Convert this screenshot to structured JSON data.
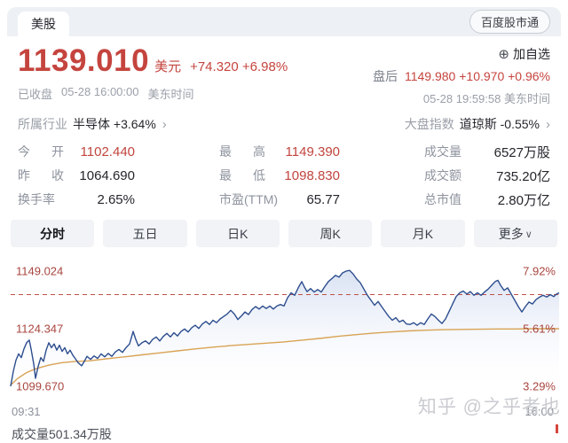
{
  "topbar": {
    "market_tab": "美股",
    "app_badge": "百度股市通"
  },
  "quote": {
    "price": "1139.010",
    "currency": "美元",
    "change": "+74.320 +6.98%",
    "status": "已收盘",
    "status_time": "05-28 16:00:00",
    "status_tz": "美东时间",
    "add_watchlist": "加自选",
    "plus_icon": "⊕",
    "after_hours_label": "盘后",
    "after_hours_values": "1149.980 +10.970 +0.96%",
    "after_hours_time": "05-28 19:59:58",
    "after_hours_tz": "美东时间"
  },
  "sector_row": {
    "industry_label": "所属行业",
    "industry_value": "半导体 +3.64%",
    "index_label": "大盘指数",
    "index_value": "道琼斯 -0.55%",
    "chevron": "›"
  },
  "stats": {
    "columns": [
      {
        "items": [
          {
            "label": "今开",
            "spread": true,
            "value": "1102.440",
            "color": "red"
          },
          {
            "label": "昨收",
            "spread": true,
            "value": "1064.690",
            "color": "dark"
          },
          {
            "label": "换手率",
            "spread": false,
            "value": "2.65%",
            "color": "dark"
          }
        ]
      },
      {
        "items": [
          {
            "label": "最高",
            "spread": true,
            "value": "1149.390",
            "color": "red"
          },
          {
            "label": "最低",
            "spread": true,
            "value": "1098.830",
            "color": "red"
          },
          {
            "label": "市盈(TTM)",
            "spread": false,
            "value": "65.77",
            "color": "dark"
          }
        ]
      },
      {
        "items": [
          {
            "label": "成交量",
            "spread": false,
            "value": "6527万股",
            "color": "dark"
          },
          {
            "label": "成交额",
            "spread": false,
            "value": "735.20亿",
            "color": "dark"
          },
          {
            "label": "总市值",
            "spread": false,
            "value": "2.80万亿",
            "color": "dark"
          }
        ]
      }
    ]
  },
  "tabs": [
    {
      "label": "分时",
      "active": true,
      "chevron": false
    },
    {
      "label": "五日",
      "active": false,
      "chevron": false
    },
    {
      "label": "日K",
      "active": false,
      "chevron": false
    },
    {
      "label": "周K",
      "active": false,
      "chevron": false
    },
    {
      "label": "月K",
      "active": false,
      "chevron": false
    },
    {
      "label": "更多",
      "active": false,
      "chevron": true
    }
  ],
  "chart_data": {
    "type": "line",
    "title": "分时 (intraday minute chart)",
    "prev_close": 1064.69,
    "close": 1139.01,
    "current_pct": 6.98,
    "high": 1149.39,
    "low": 1098.83,
    "x_range": [
      "09:31",
      "16:00"
    ],
    "y_labels_left": [
      {
        "text": "1149.024",
        "pct": 7.92
      },
      {
        "text": "1124.347",
        "pct": 5.61
      },
      {
        "text": "1099.670",
        "pct": 3.29
      }
    ],
    "y_labels_right": [
      {
        "text": "7.92%",
        "pct": 7.92
      },
      {
        "text": "5.61%",
        "pct": 5.61
      },
      {
        "text": "3.29%",
        "pct": 3.29
      }
    ],
    "calibration": [
      [
        7.92,
        21
      ],
      [
        5.61,
        86
      ]
    ],
    "colors": {
      "price_line": "#2c4d8e",
      "avg_line": "#d9a355",
      "dashed": "#c0504a",
      "fill_top": "#b9c9e8",
      "label": "#a8463f"
    },
    "price_line": [
      [
        12,
        3.3
      ],
      [
        15,
        3.9
      ],
      [
        18,
        4.35
      ],
      [
        21,
        4.6
      ],
      [
        24,
        4.45
      ],
      [
        27,
        4.8
      ],
      [
        30,
        5.05
      ],
      [
        33,
        5.15
      ],
      [
        35,
        4.8
      ],
      [
        38,
        4.2
      ],
      [
        40,
        3.62
      ],
      [
        43,
        4.1
      ],
      [
        46,
        4.45
      ],
      [
        49,
        4.3
      ],
      [
        52,
        4.75
      ],
      [
        55,
        5.05
      ],
      [
        58,
        4.85
      ],
      [
        61,
        5.0
      ],
      [
        64,
        4.75
      ],
      [
        67,
        4.95
      ],
      [
        70,
        4.7
      ],
      [
        73,
        4.85
      ],
      [
        76,
        4.6
      ],
      [
        79,
        4.75
      ],
      [
        82,
        4.55
      ],
      [
        85,
        4.4
      ],
      [
        88,
        4.25
      ],
      [
        92,
        4.12
      ],
      [
        95,
        4.3
      ],
      [
        98,
        4.5
      ],
      [
        102,
        4.38
      ],
      [
        106,
        4.52
      ],
      [
        110,
        4.42
      ],
      [
        114,
        4.6
      ],
      [
        118,
        4.48
      ],
      [
        122,
        4.62
      ],
      [
        126,
        4.5
      ],
      [
        130,
        4.68
      ],
      [
        134,
        4.78
      ],
      [
        138,
        4.66
      ],
      [
        142,
        4.85
      ],
      [
        146,
        5.0
      ],
      [
        150,
        5.5
      ],
      [
        153,
        5.18
      ],
      [
        156,
        4.92
      ],
      [
        160,
        5.05
      ],
      [
        164,
        5.12
      ],
      [
        168,
        5.0
      ],
      [
        172,
        5.18
      ],
      [
        176,
        5.28
      ],
      [
        180,
        5.12
      ],
      [
        184,
        5.3
      ],
      [
        188,
        5.42
      ],
      [
        192,
        5.28
      ],
      [
        196,
        5.45
      ],
      [
        200,
        5.32
      ],
      [
        204,
        5.5
      ],
      [
        208,
        5.6
      ],
      [
        212,
        5.48
      ],
      [
        216,
        5.65
      ],
      [
        220,
        5.75
      ],
      [
        224,
        5.62
      ],
      [
        228,
        5.8
      ],
      [
        232,
        5.9
      ],
      [
        236,
        5.78
      ],
      [
        240,
        5.95
      ],
      [
        244,
        5.85
      ],
      [
        248,
        6.0
      ],
      [
        252,
        6.1
      ],
      [
        256,
        6.2
      ],
      [
        260,
        6.35
      ],
      [
        264,
        6.2
      ],
      [
        268,
        5.98
      ],
      [
        272,
        6.12
      ],
      [
        276,
        6.28
      ],
      [
        280,
        6.18
      ],
      [
        284,
        6.38
      ],
      [
        288,
        6.5
      ],
      [
        292,
        6.4
      ],
      [
        296,
        6.52
      ],
      [
        300,
        6.42
      ],
      [
        304,
        6.52
      ],
      [
        308,
        6.4
      ],
      [
        312,
        6.52
      ],
      [
        316,
        6.58
      ],
      [
        320,
        6.52
      ],
      [
        324,
        6.85
      ],
      [
        328,
        7.05
      ],
      [
        332,
        6.95
      ],
      [
        336,
        7.25
      ],
      [
        340,
        7.5
      ],
      [
        343,
        7.28
      ],
      [
        346,
        7.1
      ],
      [
        350,
        7.22
      ],
      [
        354,
        7.08
      ],
      [
        358,
        7.18
      ],
      [
        362,
        7.08
      ],
      [
        366,
        7.3
      ],
      [
        370,
        7.5
      ],
      [
        374,
        7.62
      ],
      [
        378,
        7.75
      ],
      [
        382,
        7.68
      ],
      [
        386,
        7.85
      ],
      [
        390,
        7.92
      ],
      [
        394,
        7.95
      ],
      [
        398,
        7.8
      ],
      [
        402,
        7.6
      ],
      [
        406,
        7.45
      ],
      [
        410,
        7.2
      ],
      [
        414,
        6.95
      ],
      [
        418,
        6.75
      ],
      [
        422,
        6.55
      ],
      [
        426,
        6.7
      ],
      [
        430,
        6.5
      ],
      [
        434,
        6.3
      ],
      [
        438,
        6.1
      ],
      [
        442,
        5.95
      ],
      [
        446,
        6.05
      ],
      [
        450,
        5.88
      ],
      [
        454,
        5.95
      ],
      [
        458,
        5.8
      ],
      [
        462,
        5.78
      ],
      [
        466,
        5.85
      ],
      [
        470,
        5.75
      ],
      [
        474,
        5.85
      ],
      [
        478,
        5.78
      ],
      [
        482,
        6.0
      ],
      [
        486,
        6.2
      ],
      [
        490,
        6.1
      ],
      [
        494,
        5.95
      ],
      [
        498,
        5.82
      ],
      [
        502,
        6.0
      ],
      [
        506,
        6.3
      ],
      [
        510,
        6.6
      ],
      [
        514,
        6.9
      ],
      [
        518,
        7.05
      ],
      [
        522,
        7.12
      ],
      [
        526,
        7.0
      ],
      [
        530,
        7.1
      ],
      [
        534,
        6.95
      ],
      [
        538,
        7.05
      ],
      [
        542,
        6.95
      ],
      [
        546,
        7.08
      ],
      [
        550,
        7.2
      ],
      [
        554,
        7.35
      ],
      [
        558,
        7.5
      ],
      [
        561,
        7.55
      ],
      [
        564,
        7.35
      ],
      [
        568,
        7.15
      ],
      [
        572,
        7.25
      ],
      [
        576,
        7.0
      ],
      [
        580,
        6.75
      ],
      [
        584,
        6.5
      ],
      [
        588,
        6.28
      ],
      [
        592,
        6.5
      ],
      [
        596,
        6.68
      ],
      [
        600,
        6.6
      ],
      [
        604,
        6.78
      ],
      [
        608,
        6.88
      ],
      [
        612,
        6.95
      ],
      [
        616,
        6.88
      ],
      [
        620,
        6.98
      ],
      [
        624,
        6.9
      ],
      [
        627,
        7.0
      ],
      [
        630,
        7.05
      ]
    ],
    "avg_line": [
      [
        12,
        3.35
      ],
      [
        20,
        3.62
      ],
      [
        30,
        3.85
      ],
      [
        40,
        4.0
      ],
      [
        55,
        4.15
      ],
      [
        70,
        4.25
      ],
      [
        85,
        4.3
      ],
      [
        100,
        4.32
      ],
      [
        120,
        4.4
      ],
      [
        140,
        4.48
      ],
      [
        160,
        4.56
      ],
      [
        180,
        4.64
      ],
      [
        200,
        4.72
      ],
      [
        220,
        4.8
      ],
      [
        240,
        4.87
      ],
      [
        260,
        4.93
      ],
      [
        280,
        4.98
      ],
      [
        300,
        5.03
      ],
      [
        320,
        5.08
      ],
      [
        340,
        5.15
      ],
      [
        360,
        5.22
      ],
      [
        380,
        5.3
      ],
      [
        400,
        5.37
      ],
      [
        420,
        5.43
      ],
      [
        440,
        5.48
      ],
      [
        460,
        5.52
      ],
      [
        480,
        5.55
      ],
      [
        500,
        5.57
      ],
      [
        520,
        5.58
      ],
      [
        540,
        5.59
      ],
      [
        560,
        5.6
      ],
      [
        580,
        5.6
      ],
      [
        600,
        5.61
      ],
      [
        615,
        5.61
      ],
      [
        630,
        5.61
      ]
    ]
  },
  "footer": {
    "time_start": "09:31",
    "time_end": "16:00",
    "volume_text": "成交量501.34万股"
  },
  "watermark": "知乎 @之乎者也"
}
